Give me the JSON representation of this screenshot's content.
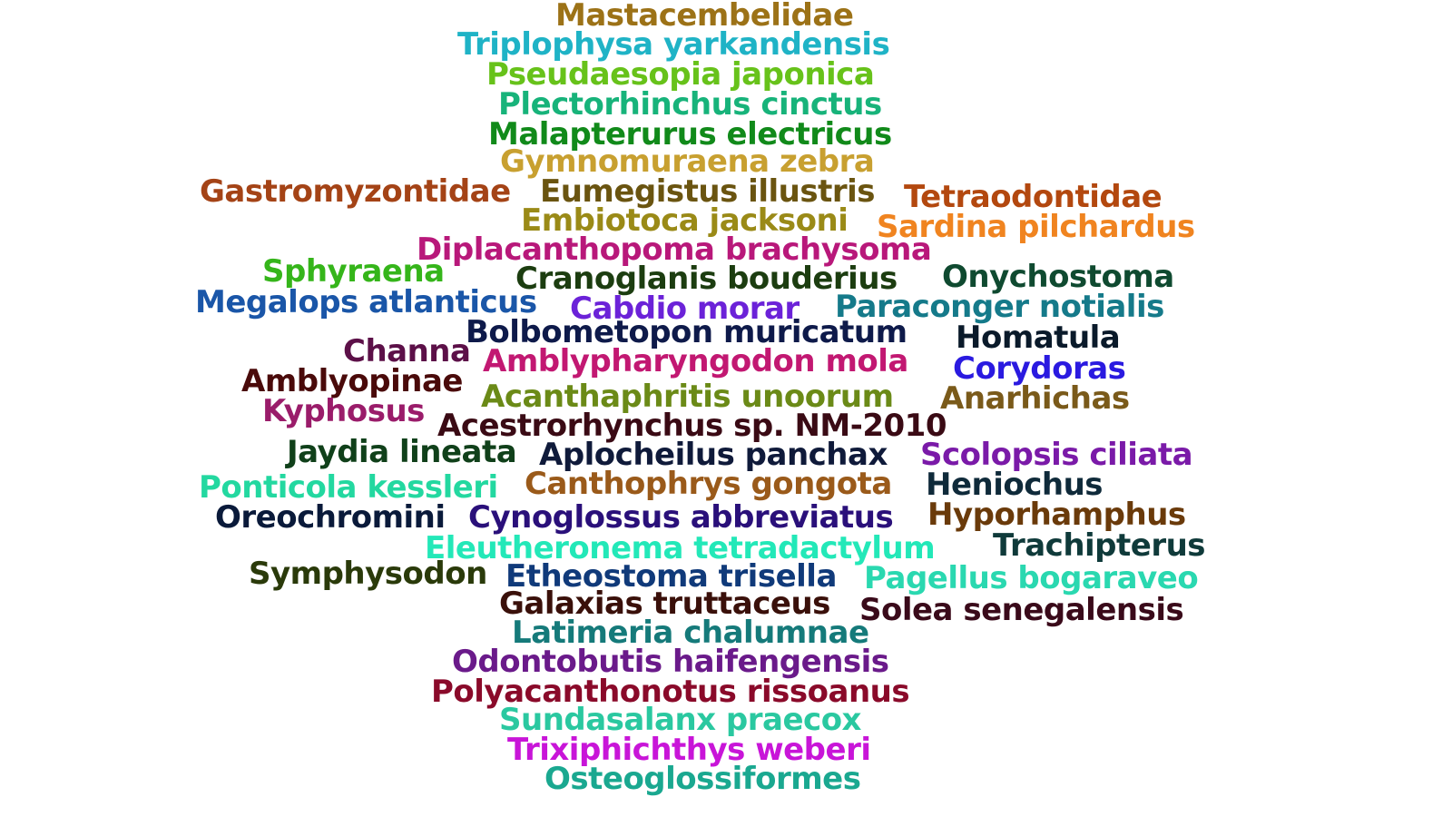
{
  "words": [
    {
      "text": "Mastacembelidae",
      "color": "#9c7217"
    },
    {
      "text": "Triplophysa yarkandensis",
      "color": "#1fb3c6"
    },
    {
      "text": "Pseudaesopia japonica",
      "color": "#67c21a"
    },
    {
      "text": "Plectorhinchus cinctus",
      "color": "#17b37a"
    },
    {
      "text": "Malapterurus electricus",
      "color": "#118a1a"
    },
    {
      "text": "Gymnomuraena zebra",
      "color": "#c8a030"
    },
    {
      "text": "Gastromyzontidae",
      "color": "#a44316"
    },
    {
      "text": "Eumegistus illustris",
      "color": "#6a5410"
    },
    {
      "text": "Tetraodontidae",
      "color": "#b3480f"
    },
    {
      "text": "Embiotoca jacksoni",
      "color": "#9a8a17"
    },
    {
      "text": "Sardina pilchardus",
      "color": "#f08420"
    },
    {
      "text": "Diplacanthopoma brachysoma",
      "color": "#b8187a"
    },
    {
      "text": "Sphyraena",
      "color": "#35b51a"
    },
    {
      "text": "Cranoglanis bouderius",
      "color": "#1c3d10"
    },
    {
      "text": "Onychostoma",
      "color": "#0f4a30"
    },
    {
      "text": "Megalops atlanticus",
      "color": "#1a56a8"
    },
    {
      "text": "Cabdio morar",
      "color": "#6b22d8"
    },
    {
      "text": "Paraconger notialis",
      "color": "#157a8a"
    },
    {
      "text": "Bolbometopon muricatum",
      "color": "#0e1a4a"
    },
    {
      "text": "Homatula",
      "color": "#0a1a2a"
    },
    {
      "text": "Channa",
      "color": "#5c1048"
    },
    {
      "text": "Amblypharyngodon mola",
      "color": "#c21872"
    },
    {
      "text": "Amblyopinae",
      "color": "#4a0a0a"
    },
    {
      "text": "Corydoras",
      "color": "#2a1ae0"
    },
    {
      "text": "Acanthaphritis unoorum",
      "color": "#6b8a17"
    },
    {
      "text": "Anarhichas",
      "color": "#7a5a1a"
    },
    {
      "text": "Kyphosus",
      "color": "#9a1c6a"
    },
    {
      "text": "Acestrorhynchus sp. NM-2010",
      "color": "#3a0a14"
    },
    {
      "text": "Jaydia lineata",
      "color": "#10401a"
    },
    {
      "text": "Aplocheilus panchax",
      "color": "#0f1a3a"
    },
    {
      "text": "Scolopsis ciliata",
      "color": "#7a1aa8"
    },
    {
      "text": "Ponticola kessleri",
      "color": "#23d8a0"
    },
    {
      "text": "Canthophrys gongota",
      "color": "#9a5a1a"
    },
    {
      "text": "Heniochus",
      "color": "#0f2a3a"
    },
    {
      "text": "Oreochromini",
      "color": "#0a1a3a"
    },
    {
      "text": "Cynoglossus abbreviatus",
      "color": "#2a107a"
    },
    {
      "text": "Hyporhamphus",
      "color": "#6a3a0a"
    },
    {
      "text": "Eleutheronema tetradactylum",
      "color": "#23e8b8"
    },
    {
      "text": "Trachipterus",
      "color": "#0f3a3a"
    },
    {
      "text": "Symphysodon",
      "color": "#2a3a0a"
    },
    {
      "text": "Etheostoma trisella",
      "color": "#103a7a"
    },
    {
      "text": "Pagellus bogaraveo",
      "color": "#2ad8b0"
    },
    {
      "text": "Galaxias truttaceus",
      "color": "#3a100a"
    },
    {
      "text": "Solea senegalensis",
      "color": "#3a0a1a"
    },
    {
      "text": "Latimeria chalumnae",
      "color": "#157a7a"
    },
    {
      "text": "Odontobutis haifengensis",
      "color": "#6a1a8a"
    },
    {
      "text": "Polyacanthonotus rissoanus",
      "color": "#8a0a2a"
    },
    {
      "text": "Sundasalanx praecox",
      "color": "#2ac8a0"
    },
    {
      "text": "Trixiphichthys weberi",
      "color": "#c815d8"
    },
    {
      "text": "Osteoglossiformes",
      "color": "#1aa890"
    }
  ]
}
